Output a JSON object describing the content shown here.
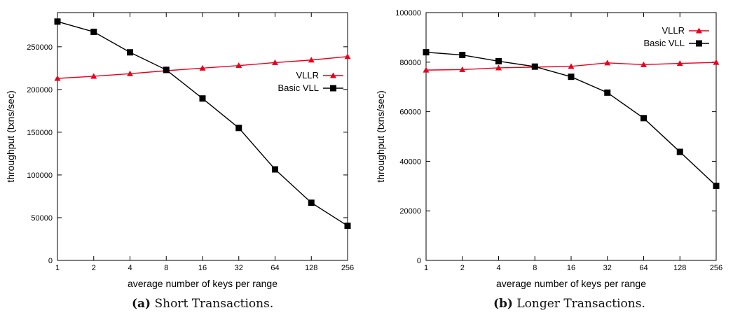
{
  "chart_data": [
    {
      "type": "line",
      "panel_label": "(a)",
      "caption": "Short Transactions.",
      "xlabel": "average number of keys per range",
      "ylabel": "throughput (txns/sec)",
      "x_scale": "log2",
      "categories": [
        "1",
        "2",
        "4",
        "8",
        "16",
        "32",
        "64",
        "128",
        "256"
      ],
      "x": [
        1,
        2,
        4,
        8,
        16,
        32,
        64,
        128,
        256
      ],
      "ylim": [
        0,
        290000
      ],
      "yticks": [
        0,
        50000,
        100000,
        150000,
        200000,
        250000
      ],
      "ytick_labels": [
        "0",
        "50000",
        "100000",
        "150000",
        "200000",
        "250000"
      ],
      "legend_position": "center-right",
      "series": [
        {
          "name": "VLLR",
          "color": "#e8001c",
          "marker": "triangle",
          "values": [
            213000,
            215500,
            218500,
            222000,
            225000,
            228000,
            231500,
            234500,
            238500
          ]
        },
        {
          "name": "Basic VLL",
          "color": "#000000",
          "marker": "square",
          "values": [
            279500,
            267500,
            243500,
            223000,
            189500,
            155000,
            106500,
            67500,
            40500
          ]
        }
      ]
    },
    {
      "type": "line",
      "panel_label": "(b)",
      "caption": "Longer Transactions.",
      "xlabel": "average number of keys per range",
      "ylabel": "throughput (txns/sec)",
      "x_scale": "log2",
      "categories": [
        "1",
        "2",
        "4",
        "8",
        "16",
        "32",
        "64",
        "128",
        "256"
      ],
      "x": [
        1,
        2,
        4,
        8,
        16,
        32,
        64,
        128,
        256
      ],
      "ylim": [
        0,
        100000
      ],
      "yticks": [
        0,
        20000,
        40000,
        60000,
        80000,
        100000
      ],
      "ytick_labels": [
        "0",
        "20000",
        "40000",
        "60000",
        "80000",
        "100000"
      ],
      "legend_position": "top-right",
      "series": [
        {
          "name": "VLLR",
          "color": "#e8001c",
          "marker": "triangle",
          "values": [
            76800,
            77000,
            77700,
            78000,
            78300,
            79700,
            79000,
            79500,
            79900
          ]
        },
        {
          "name": "Basic VLL",
          "color": "#000000",
          "marker": "square",
          "values": [
            84000,
            82900,
            80400,
            78200,
            74100,
            67700,
            57400,
            43800,
            30100
          ]
        }
      ]
    }
  ]
}
